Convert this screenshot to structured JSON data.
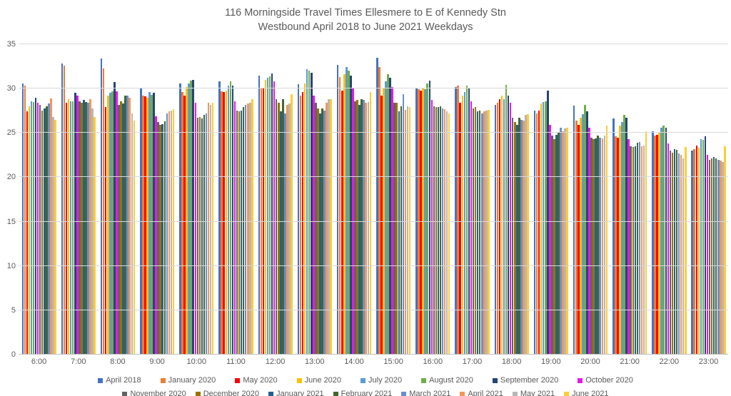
{
  "title": {
    "line1": "116 Morningside Travel Times Ellesmere to E of Kennedy Stn",
    "line2": "Westbound April 2018 to June 2021 Weekdays"
  },
  "chart_data": {
    "type": "bar",
    "title": "116 Morningside Travel Times Ellesmere to E of Kennedy Stn Westbound April 2018 to June 2021 Weekdays",
    "xlabel": "",
    "ylabel": "",
    "ylim": [
      0,
      35
    ],
    "yticks": [
      0,
      5,
      10,
      15,
      20,
      25,
      30,
      35
    ],
    "grid": "horizontal",
    "gridline_color": "#d9d9d9",
    "axis_text_color": "#595959",
    "legend_position": "bottom",
    "categories": [
      "6:00",
      "7:00",
      "8:00",
      "9:00",
      "10:00",
      "11:00",
      "12:00",
      "13:00",
      "14:00",
      "15:00",
      "16:00",
      "17:00",
      "18:00",
      "19:00",
      "20:00",
      "21:00",
      "22:00",
      "23:00"
    ],
    "series": [
      {
        "name": "April 2018",
        "color": "#4472C4",
        "values": [
          30.6,
          32.8,
          33.4,
          30.0,
          30.6,
          30.8,
          31.5,
          30.5,
          32.7,
          33.5,
          30.0,
          30.2,
          28.2,
          27.5,
          28.1,
          26.6,
          25.2,
          23.0
        ]
      },
      {
        "name": "January 2020",
        "color": "#ED7D31",
        "values": [
          30.3,
          32.6,
          32.3,
          29.2,
          29.6,
          29.7,
          30.1,
          29.2,
          31.3,
          32.4,
          29.9,
          30.3,
          28.4,
          27.2,
          26.4,
          24.6,
          24.7,
          23.2
        ]
      },
      {
        "name": "May 2020",
        "color": "#FF0000",
        "values": [
          27.4,
          28.4,
          27.9,
          29.1,
          29.2,
          29.6,
          30.0,
          29.6,
          29.8,
          29.2,
          29.8,
          28.4,
          28.8,
          27.5,
          25.9,
          24.5,
          24.8,
          23.6
        ]
      },
      {
        "name": "June 2020",
        "color": "#FFC000",
        "values": [
          28.0,
          28.8,
          29.2,
          29.0,
          30.2,
          29.8,
          31.0,
          30.6,
          31.6,
          30.0,
          30.1,
          29.2,
          29.2,
          28.3,
          26.7,
          25.8,
          25.0,
          23.3
        ]
      },
      {
        "name": "July 2020",
        "color": "#5B9BD5",
        "values": [
          28.6,
          28.6,
          29.5,
          29.6,
          30.6,
          30.3,
          31.2,
          32.2,
          32.4,
          30.8,
          29.9,
          29.6,
          28.8,
          28.5,
          27.1,
          26.2,
          25.6,
          24.3
        ]
      },
      {
        "name": "August 2020",
        "color": "#70AD47",
        "values": [
          28.5,
          28.6,
          29.7,
          29.3,
          30.9,
          30.8,
          31.4,
          32.0,
          32.0,
          31.6,
          30.6,
          30.3,
          30.4,
          28.6,
          28.2,
          27.0,
          25.8,
          24.2
        ]
      },
      {
        "name": "September 2020",
        "color": "#264478",
        "values": [
          29.0,
          29.5,
          30.7,
          29.5,
          31.0,
          30.3,
          31.7,
          31.8,
          31.5,
          31.2,
          30.9,
          30.0,
          29.2,
          29.8,
          27.4,
          26.7,
          25.6,
          24.6
        ]
      },
      {
        "name": "October 2020",
        "color": "#E619E6",
        "values": [
          28.4,
          29.2,
          29.7,
          26.9,
          28.4,
          28.6,
          30.8,
          29.2,
          30.0,
          30.2,
          28.7,
          28.6,
          28.4,
          25.9,
          25.6,
          24.3,
          23.8,
          22.5
        ]
      },
      {
        "name": "November 2020",
        "color": "#636363",
        "values": [
          28.2,
          28.6,
          28.2,
          26.2,
          26.7,
          27.5,
          28.8,
          28.4,
          28.6,
          28.4,
          28.0,
          27.8,
          26.7,
          24.7,
          24.5,
          23.5,
          23.0,
          22.0
        ]
      },
      {
        "name": "December 2020",
        "color": "#997300",
        "values": [
          27.5,
          28.4,
          28.6,
          25.9,
          26.8,
          27.4,
          28.4,
          27.8,
          28.7,
          28.4,
          27.9,
          27.9,
          26.2,
          24.3,
          24.3,
          23.4,
          22.8,
          22.1
        ]
      },
      {
        "name": "January 2021",
        "color": "#255E91",
        "values": [
          27.8,
          28.7,
          28.3,
          26.0,
          26.6,
          27.5,
          27.4,
          27.2,
          28.2,
          27.4,
          27.9,
          27.4,
          25.9,
          24.8,
          24.4,
          23.5,
          23.2,
          22.3
        ]
      },
      {
        "name": "February 2021",
        "color": "#43682B",
        "values": [
          28.0,
          28.5,
          29.2,
          26.3,
          27.0,
          27.9,
          28.8,
          27.8,
          28.8,
          28.0,
          28.0,
          27.5,
          26.7,
          25.0,
          24.7,
          23.9,
          23.1,
          22.1
        ]
      },
      {
        "name": "March 2021",
        "color": "#698ED0",
        "values": [
          28.3,
          28.4,
          29.2,
          27.2,
          27.2,
          28.2,
          27.2,
          27.5,
          28.7,
          29.4,
          27.8,
          27.2,
          26.5,
          25.6,
          24.5,
          24.0,
          22.7,
          22.0
        ]
      },
      {
        "name": "April 2021",
        "color": "#F1975A",
        "values": [
          28.9,
          28.8,
          29.0,
          27.4,
          28.4,
          28.3,
          28.2,
          28.4,
          28.4,
          27.6,
          27.7,
          27.4,
          26.4,
          25.2,
          24.4,
          23.5,
          22.5,
          21.9
        ]
      },
      {
        "name": "May 2021",
        "color": "#B7B7B7",
        "values": [
          26.8,
          27.8,
          27.2,
          27.5,
          28.2,
          28.4,
          28.3,
          28.8,
          28.5,
          28.0,
          27.4,
          27.5,
          27.0,
          25.5,
          24.7,
          23.6,
          22.1,
          21.7
        ]
      },
      {
        "name": "June 2021",
        "color": "#FFCD33",
        "values": [
          26.5,
          26.8,
          26.4,
          27.7,
          28.4,
          28.8,
          29.4,
          28.8,
          29.6,
          27.9,
          27.2,
          27.6,
          27.1,
          25.6,
          25.8,
          25.2,
          23.4,
          23.5
        ]
      }
    ]
  }
}
